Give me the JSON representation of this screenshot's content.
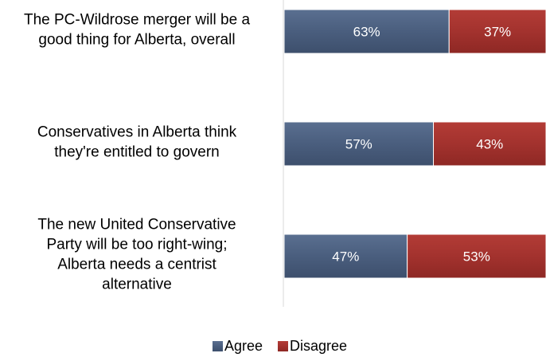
{
  "chart_data": {
    "type": "bar",
    "orientation": "horizontal",
    "stacked": true,
    "percent_stacked": true,
    "categories": [
      [
        "The PC-Wildrose merger will be a",
        "good thing for Alberta, overall"
      ],
      [
        "Conservatives in Alberta think",
        "they're entitled to govern"
      ],
      [
        "The new United Conservative",
        "Party will be too right-wing;",
        "Alberta needs a centrist",
        "alternative"
      ]
    ],
    "series": [
      {
        "name": "Agree",
        "values": [
          63,
          57,
          47
        ],
        "labels": [
          "63%",
          "57%",
          "47%"
        ],
        "color": "#4a5e7e"
      },
      {
        "name": "Disagree",
        "values": [
          37,
          43,
          53
        ],
        "labels": [
          "37%",
          "43%",
          "53%"
        ],
        "color": "#a3322e"
      }
    ],
    "xlim": [
      0,
      100
    ],
    "grid": false,
    "legend_position": "bottom",
    "title": "",
    "xlabel": "",
    "ylabel": ""
  }
}
